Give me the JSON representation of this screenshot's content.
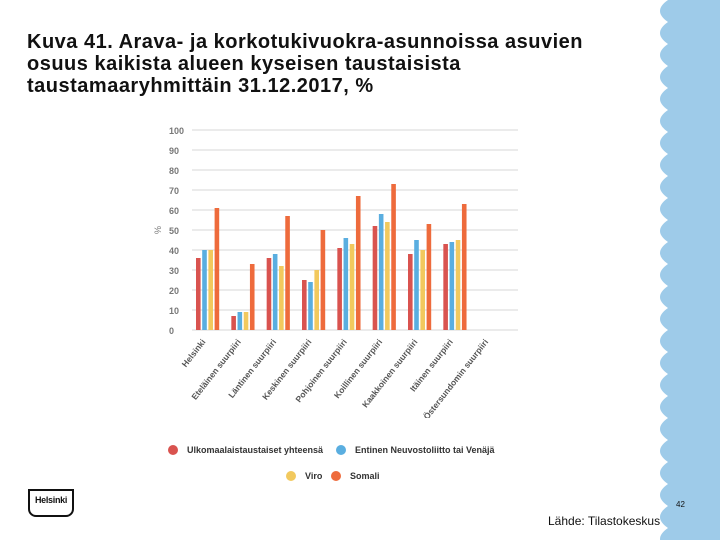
{
  "slide": {
    "title_lines": [
      "Kuva 41. Arava- ja korkotukivuokra-asunnoissa asuvien",
      "osuus kaikista alueen kyseisen taustaisista",
      "taustamaaryhmittäin 31.12.2017, %"
    ],
    "page_number": "42",
    "source": "Lähde: Tilastokeskus",
    "logo_text": "Helsinki"
  },
  "colors": {
    "accent_blue": "#9ecbe9",
    "series": [
      "#d9534f",
      "#5aaee0",
      "#f2c95e",
      "#ee6b3c"
    ],
    "grid": "#d7d7d7",
    "axis_text": "#777777"
  },
  "chart_data": {
    "type": "bar",
    "title": "",
    "ylabel": "%",
    "xlabel": "",
    "ylim": [
      0,
      100
    ],
    "yticks": [
      0,
      10,
      20,
      30,
      40,
      50,
      60,
      70,
      80,
      90,
      100
    ],
    "categories": [
      "Helsinki",
      "Eteläinen suurpiiri",
      "Läntinen suurpiiri",
      "Keskinen suurpiiri",
      "Pohjoinen suurpiiri",
      "Koillinen suurpiiri",
      "Kaakkoinen suurpiiri",
      "Itäinen suurpiiri",
      "Östersundomin suurpiiri"
    ],
    "series": [
      {
        "name": "Ulkomaalaistaustaiset yhteensä",
        "values": [
          36,
          7,
          36,
          25,
          41,
          52,
          38,
          43,
          0
        ]
      },
      {
        "name": "Entinen Neuvostoliitto tai Venäjä",
        "values": [
          40,
          9,
          38,
          24,
          46,
          58,
          45,
          44,
          0
        ]
      },
      {
        "name": "Viro",
        "values": [
          40,
          9,
          32,
          30,
          43,
          54,
          40,
          45,
          0
        ]
      },
      {
        "name": "Somali",
        "values": [
          61,
          33,
          57,
          50,
          67,
          73,
          53,
          63,
          0
        ]
      }
    ],
    "legend_position": "bottom"
  }
}
